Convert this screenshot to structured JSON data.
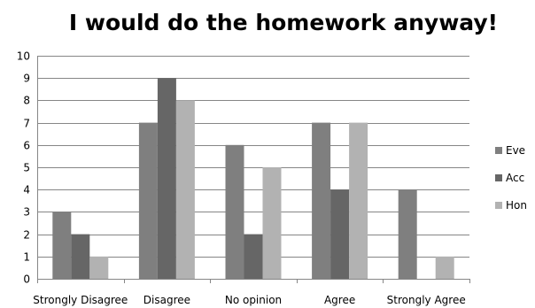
{
  "chart_data": {
    "type": "bar",
    "title": "I would do the homework anyway!",
    "categories": [
      "Strongly Disagree",
      "Disagree",
      "No opinion",
      "Agree",
      "Strongly Agree"
    ],
    "series": [
      {
        "name": "Eve",
        "values": [
          3,
          7,
          6,
          7,
          4
        ],
        "color": "#7f7f7f"
      },
      {
        "name": "Acc",
        "values": [
          2,
          9,
          2,
          4,
          0
        ],
        "color": "#666666"
      },
      {
        "name": "Hon",
        "values": [
          1,
          8,
          5,
          7,
          1
        ],
        "color": "#b2b2b2"
      }
    ],
    "ylim": [
      0,
      10
    ],
    "yticks": [
      0,
      1,
      2,
      3,
      4,
      5,
      6,
      7,
      8,
      9,
      10
    ],
    "grid": true,
    "legend_position": "right"
  }
}
